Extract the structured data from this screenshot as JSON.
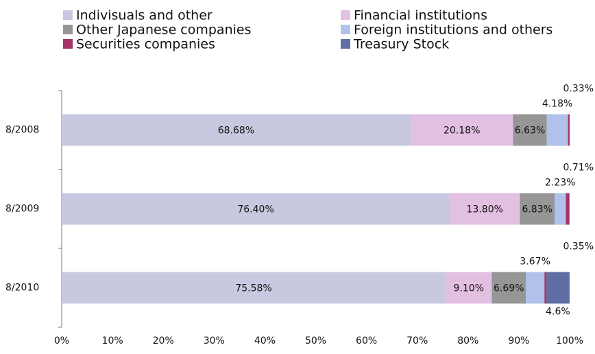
{
  "chart_data": {
    "type": "stacked_barh",
    "categories": [
      "8/2008",
      "8/2009",
      "8/2010"
    ],
    "series": [
      {
        "name": "Indivisuals and other",
        "color": "#c8c8e0",
        "values": [
          68.68,
          76.4,
          75.58
        ],
        "value_labels": [
          "68.68%",
          "76.40%",
          "75.58%"
        ]
      },
      {
        "name": "Financial institutions",
        "color": "#e2c0e2",
        "values": [
          20.18,
          13.8,
          9.1
        ],
        "value_labels": [
          "20.18%",
          "13.80%",
          "9.10%"
        ]
      },
      {
        "name": "Other Japanese companies",
        "color": "#969696",
        "values": [
          6.63,
          6.83,
          6.69
        ],
        "value_labels": [
          "6.63%",
          "6.83%",
          "6.69%"
        ]
      },
      {
        "name": "Foreign institutions and others",
        "color": "#b0c2ea",
        "values": [
          4.18,
          2.23,
          3.67
        ],
        "value_labels": [
          "4.18%",
          "2.23%",
          "3.67%"
        ]
      },
      {
        "name": "Securities companies",
        "color": "#a33466",
        "values": [
          0.33,
          0.71,
          0.35
        ],
        "value_labels": [
          "0.33%",
          "0.71%",
          "0.35%"
        ]
      },
      {
        "name": "Treasury Stock",
        "color": "#5f6fa3",
        "values": [
          null,
          null,
          4.6
        ],
        "value_labels": [
          null,
          null,
          "4.6%"
        ]
      }
    ],
    "xlim": [
      0,
      100
    ],
    "xticks": [
      {
        "value": 0,
        "label": "0%"
      },
      {
        "value": 10,
        "label": "10%"
      },
      {
        "value": 20,
        "label": "20%"
      },
      {
        "value": 30,
        "label": "30%"
      },
      {
        "value": 40,
        "label": "40%"
      },
      {
        "value": 50,
        "label": "50%"
      },
      {
        "value": 60,
        "label": "60%"
      },
      {
        "value": 70,
        "label": "70%"
      },
      {
        "value": 80,
        "label": "80%"
      },
      {
        "value": 90,
        "label": "90%"
      },
      {
        "value": 100,
        "label": "100%"
      }
    ],
    "grid": false,
    "legend": "top"
  }
}
